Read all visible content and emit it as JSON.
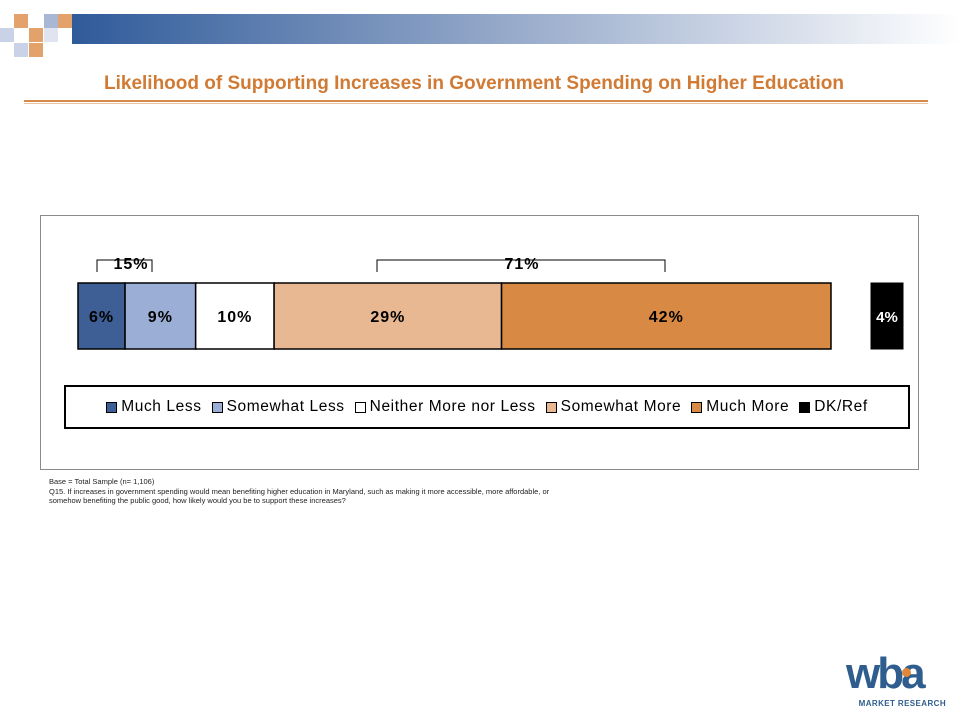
{
  "title": "Likelihood of Supporting Increases in Government Spending on Higher Education",
  "chart_data": {
    "type": "bar",
    "orientation": "horizontal-stacked",
    "series": [
      {
        "name": "Much Less",
        "values": [
          6
        ],
        "label": "6%",
        "color": "#3d5f95",
        "text_color": "#000000"
      },
      {
        "name": "Somewhat Less",
        "values": [
          9
        ],
        "label": "9%",
        "color": "#9baed6",
        "text_color": "#000000"
      },
      {
        "name": "Neither More nor Less",
        "values": [
          10
        ],
        "label": "10%",
        "color": "#ffffff",
        "text_color": "#000000"
      },
      {
        "name": "Somewhat More",
        "values": [
          29
        ],
        "label": "29%",
        "color": "#e7b892",
        "text_color": "#000000"
      },
      {
        "name": "Much More",
        "values": [
          42
        ],
        "label": "42%",
        "color": "#d88a44",
        "text_color": "#000000"
      }
    ],
    "separate_bar": {
      "name": "DK/Ref",
      "value": 4,
      "label": "4%",
      "color": "#000000",
      "text_color": "#ffffff"
    },
    "annotations": [
      {
        "label": "15%",
        "spans": [
          "Much Less",
          "Somewhat Less"
        ]
      },
      {
        "label": "71%",
        "spans": [
          "Somewhat More",
          "Much More"
        ]
      }
    ],
    "legend": {
      "placement": "bottom",
      "entries": [
        "Much Less",
        "Somewhat Less",
        "Neither More nor Less",
        "Somewhat More",
        "Much More",
        "DK/Ref"
      ]
    },
    "xlim": [
      0,
      100
    ],
    "grid": false
  },
  "footnote": {
    "line1": "Base = Total Sample (n= 1,106)",
    "line2": "Q15. If increases in government spending would mean benefiting higher education in Maryland, such as making it more accessible, more affordable, or",
    "line3": "somehow benefiting the public good, how likely would you be to support these increases?"
  },
  "logo": {
    "word": "wba",
    "subtitle": "MARKET RESEARCH",
    "color": "#2e5d8e",
    "accent": "#e2873a"
  },
  "colors": {
    "brand_orange": "#d07a34",
    "brand_blue": "#3d5f95"
  }
}
